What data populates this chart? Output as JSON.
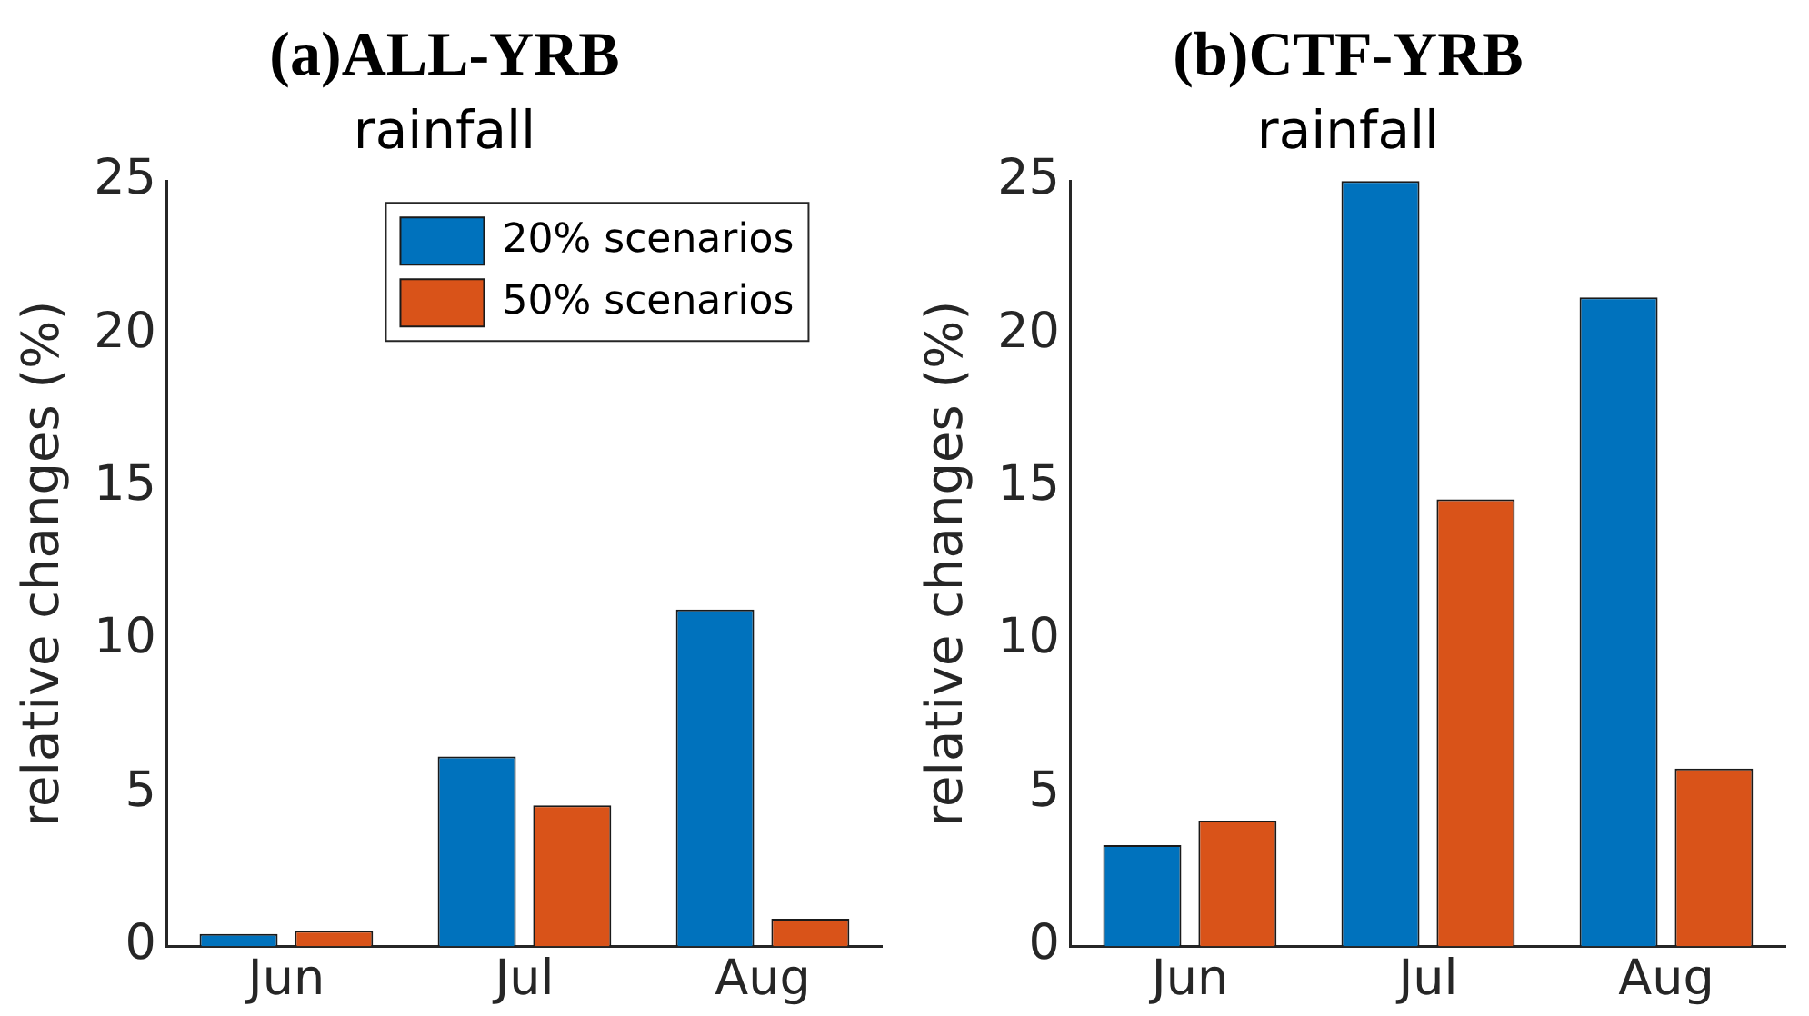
{
  "chart_data": [
    {
      "type": "bar",
      "title": "(a)ALL-YRB",
      "subtitle": "rainfall",
      "ylabel": "relative changes (%)",
      "categories": [
        "Jun",
        "Jul",
        "Aug"
      ],
      "series": [
        {
          "name": "20% scenarios",
          "color": "#0072bd",
          "values": [
            0.4,
            6.2,
            11.0
          ]
        },
        {
          "name": "50% scenarios",
          "color": "#d95319",
          "values": [
            0.5,
            4.6,
            0.9
          ]
        }
      ],
      "ylim": [
        0,
        25
      ],
      "yticks": [
        0,
        5,
        10,
        15,
        20,
        25
      ],
      "grid": false,
      "legend": "top"
    },
    {
      "type": "bar",
      "title": "(b)CTF-YRB",
      "subtitle": "rainfall",
      "ylabel": "relative changes (%)",
      "categories": [
        "Jun",
        "Jul",
        "Aug"
      ],
      "series": [
        {
          "color": "#0072bd",
          "values": [
            3.3,
            25,
            21.2
          ]
        },
        {
          "color": "#d95319",
          "values": [
            4.1,
            14.6,
            5.8
          ]
        }
      ],
      "ylim": [
        0,
        25
      ],
      "yticks": [
        0,
        5,
        10,
        15,
        20,
        25
      ],
      "grid": false
    }
  ]
}
